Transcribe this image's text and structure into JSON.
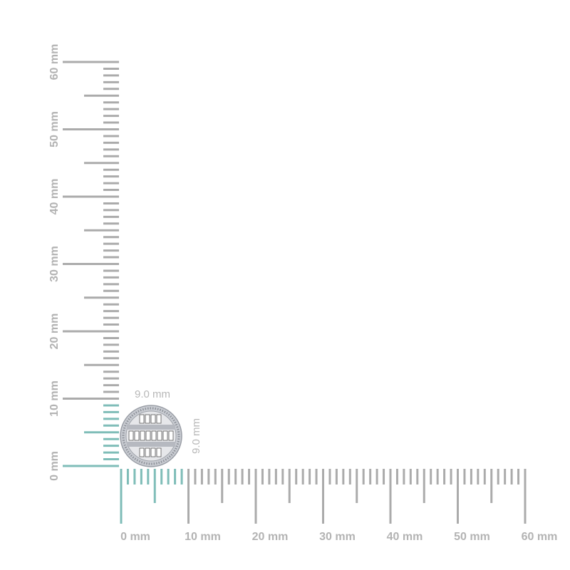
{
  "rulers": {
    "unit": "mm",
    "range_mm": [
      0,
      60
    ],
    "labels": [
      "0 mm",
      "10 mm",
      "20 mm",
      "30 mm",
      "40 mm",
      "50 mm",
      "60 mm"
    ],
    "highlight_range_mm": [
      0,
      9
    ],
    "colors": {
      "tick": "#ababab",
      "highlight": "#7fbdb8",
      "label": "#b3b3b3"
    }
  },
  "item": {
    "width_label": "9.0 mm",
    "height_label": "9.0 mm",
    "width_mm": 9.0,
    "height_mm": 9.0
  }
}
